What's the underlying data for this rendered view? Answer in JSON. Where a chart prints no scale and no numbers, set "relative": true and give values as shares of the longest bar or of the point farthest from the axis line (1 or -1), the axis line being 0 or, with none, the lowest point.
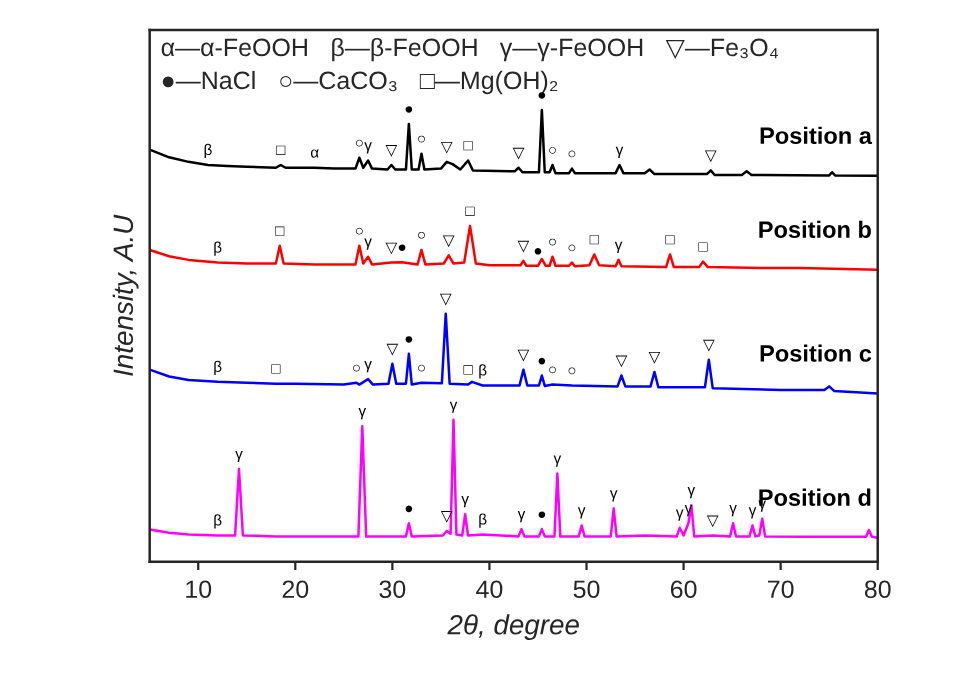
{
  "chart_data": {
    "type": "line",
    "relative": true,
    "xlabel": "2θ, degree",
    "ylabel": "Intensity, A.U",
    "xlim": [
      5,
      80
    ],
    "xticks": [
      10,
      20,
      30,
      40,
      50,
      60,
      70,
      80
    ],
    "legend": false,
    "grid": false,
    "series": [
      {
        "name": "Position a",
        "color": "#000000",
        "x": [
          5,
          7,
          9,
          11,
          13,
          15,
          18,
          18.5,
          19,
          22,
          24,
          26.2,
          26.6,
          27,
          27.5,
          27.9,
          29.5,
          29.9,
          30.3,
          31.4,
          31.7,
          32,
          32.7,
          33,
          33.3,
          35,
          35.6,
          36.2,
          37,
          37.8,
          38.3,
          42.6,
          43,
          43.4,
          45.1,
          45.4,
          45.7,
          46.2,
          46.5,
          46.8,
          48.2,
          48.5,
          48.8,
          53,
          53.4,
          53.8,
          56,
          56.5,
          57,
          62.4,
          62.8,
          63.2,
          66,
          66.5,
          67,
          75,
          75.3,
          75.6,
          80
        ],
        "values": [
          0.912,
          0.895,
          0.885,
          0.878,
          0.876,
          0.874,
          0.872,
          0.878,
          0.872,
          0.872,
          0.87,
          0.87,
          0.894,
          0.872,
          0.888,
          0.87,
          0.868,
          0.878,
          0.868,
          0.868,
          0.969,
          0.868,
          0.868,
          0.903,
          0.868,
          0.87,
          0.885,
          0.88,
          0.868,
          0.888,
          0.866,
          0.864,
          0.872,
          0.862,
          0.862,
          1.0,
          0.862,
          0.862,
          0.878,
          0.86,
          0.86,
          0.87,
          0.86,
          0.86,
          0.878,
          0.86,
          0.86,
          0.868,
          0.858,
          0.858,
          0.866,
          0.856,
          0.856,
          0.864,
          0.856,
          0.855,
          0.862,
          0.855,
          0.854
        ]
      },
      {
        "name": "Position b",
        "color": "#ff0000",
        "x": [
          5,
          7,
          9,
          12,
          15,
          18,
          18.4,
          18.8,
          22,
          26.2,
          26.6,
          27,
          27.5,
          27.9,
          29.9,
          31,
          32.6,
          33,
          33.4,
          35.3,
          35.8,
          36.3,
          37.4,
          38,
          38.6,
          40,
          43.2,
          43.5,
          43.8,
          45,
          45.4,
          45.8,
          46.2,
          46.5,
          46.8,
          48.2,
          48.5,
          48.8,
          50.3,
          50.8,
          51.3,
          53,
          53.3,
          53.6,
          58.2,
          58.6,
          59,
          61.6,
          62,
          62.5,
          68,
          72,
          80
        ],
        "values": [
          0.69,
          0.676,
          0.668,
          0.662,
          0.66,
          0.66,
          0.699,
          0.66,
          0.658,
          0.658,
          0.699,
          0.66,
          0.675,
          0.658,
          0.662,
          0.663,
          0.658,
          0.69,
          0.658,
          0.66,
          0.678,
          0.66,
          0.662,
          0.743,
          0.66,
          0.656,
          0.656,
          0.666,
          0.655,
          0.655,
          0.67,
          0.655,
          0.655,
          0.675,
          0.655,
          0.655,
          0.662,
          0.654,
          0.656,
          0.68,
          0.656,
          0.654,
          0.668,
          0.654,
          0.652,
          0.68,
          0.652,
          0.652,
          0.664,
          0.652,
          0.65,
          0.65,
          0.646
        ]
      },
      {
        "name": "Position c",
        "color": "#0000ff",
        "x": [
          5,
          7,
          9,
          12,
          15,
          18,
          20,
          25,
          26.3,
          26.6,
          27.5,
          28,
          29.6,
          30,
          30.4,
          31.4,
          31.7,
          32,
          33,
          35.1,
          35.5,
          35.9,
          37.8,
          38.2,
          39.3,
          43.1,
          43.5,
          43.9,
          45.1,
          45.4,
          45.7,
          46.5,
          48.5,
          53.2,
          53.6,
          54,
          56.6,
          57,
          57.4,
          62.2,
          62.6,
          63,
          70,
          74.5,
          75,
          75.5,
          80
        ],
        "values": [
          0.425,
          0.41,
          0.402,
          0.398,
          0.396,
          0.394,
          0.394,
          0.392,
          0.396,
          0.392,
          0.404,
          0.392,
          0.394,
          0.438,
          0.394,
          0.394,
          0.46,
          0.392,
          0.396,
          0.395,
          0.549,
          0.394,
          0.392,
          0.398,
          0.39,
          0.39,
          0.425,
          0.39,
          0.39,
          0.412,
          0.389,
          0.392,
          0.39,
          0.388,
          0.412,
          0.388,
          0.388,
          0.42,
          0.386,
          0.386,
          0.447,
          0.384,
          0.38,
          0.38,
          0.388,
          0.378,
          0.372
        ]
      },
      {
        "name": "Position d",
        "color": "#ff00ff",
        "x": [
          5,
          7,
          9,
          12,
          13.8,
          14.2,
          14.6,
          18,
          22,
          26.5,
          26.9,
          27.3,
          31.4,
          31.7,
          32,
          35.2,
          35.6,
          36,
          36.3,
          36.6,
          37.2,
          37.5,
          37.8,
          39.3,
          43,
          43.3,
          43.6,
          45.1,
          45.4,
          45.7,
          46.7,
          47,
          47.3,
          49.2,
          49.5,
          49.8,
          52.5,
          52.8,
          53.1,
          56,
          59.3,
          59.6,
          60,
          60.5,
          60.8,
          61.1,
          63,
          64.8,
          65.1,
          65.4,
          66.8,
          67.1,
          67.4,
          67.8,
          68.1,
          68.4,
          72,
          78.8,
          79.1,
          79.4,
          80
        ],
        "values": [
          0.071,
          0.064,
          0.06,
          0.058,
          0.058,
          0.205,
          0.058,
          0.056,
          0.056,
          0.056,
          0.3,
          0.056,
          0.056,
          0.085,
          0.056,
          0.058,
          0.068,
          0.062,
          0.314,
          0.06,
          0.058,
          0.105,
          0.058,
          0.06,
          0.056,
          0.072,
          0.056,
          0.056,
          0.072,
          0.056,
          0.056,
          0.195,
          0.056,
          0.056,
          0.08,
          0.056,
          0.056,
          0.118,
          0.056,
          0.058,
          0.056,
          0.075,
          0.058,
          0.085,
          0.125,
          0.056,
          0.058,
          0.056,
          0.085,
          0.056,
          0.056,
          0.08,
          0.056,
          0.058,
          0.095,
          0.056,
          0.055,
          0.055,
          0.07,
          0.055,
          0.053
        ]
      }
    ],
    "annotations": [
      "α—α-FeOOH",
      "β—β-FeOOH",
      "γ—γ-FeOOH",
      "▽—Fe₃O₄",
      "●—NaCl",
      "○—CaCO₃",
      "□—Mg(OH)₂",
      {
        "text": "β",
        "x": 11,
        "y": 0.878
      },
      {
        "text": "□",
        "x": 18.5,
        "y": 0.878
      },
      {
        "text": "α",
        "x": 22,
        "y": 0.872
      },
      {
        "text": "○",
        "x": 26.6,
        "y": 0.894
      },
      {
        "text": "γ",
        "x": 27.5,
        "y": 0.888
      },
      {
        "text": "▽",
        "x": 29.9,
        "y": 0.878
      },
      {
        "text": "●",
        "x": 31.7,
        "y": 0.969
      },
      {
        "text": "○",
        "x": 33,
        "y": 0.903
      },
      {
        "text": "▽",
        "x": 35.6,
        "y": 0.885
      },
      {
        "text": "□",
        "x": 37.8,
        "y": 0.888
      },
      {
        "text": "▽",
        "x": 43,
        "y": 0.872
      },
      {
        "text": "●",
        "x": 45.4,
        "y": 1.0
      },
      {
        "text": "○",
        "x": 46.5,
        "y": 0.878
      },
      {
        "text": "○",
        "x": 48.5,
        "y": 0.87
      },
      {
        "text": "γ",
        "x": 53.4,
        "y": 0.878
      },
      {
        "text": "▽",
        "x": 62.8,
        "y": 0.866
      },
      {
        "text": "β",
        "x": 12,
        "y": 0.662
      },
      {
        "text": "□",
        "x": 18.4,
        "y": 0.699
      },
      {
        "text": "○",
        "x": 26.6,
        "y": 0.699
      },
      {
        "text": "γ",
        "x": 27.5,
        "y": 0.675
      },
      {
        "text": "▽",
        "x": 29.9,
        "y": 0.662
      },
      {
        "text": "●",
        "x": 31,
        "y": 0.663
      },
      {
        "text": "○",
        "x": 33,
        "y": 0.69
      },
      {
        "text": "▽",
        "x": 35.8,
        "y": 0.678
      },
      {
        "text": "□",
        "x": 38,
        "y": 0.743
      },
      {
        "text": "▽",
        "x": 43.5,
        "y": 0.666
      },
      {
        "text": "●",
        "x": 45,
        "y": 0.655
      },
      {
        "text": "○",
        "x": 46.5,
        "y": 0.675
      },
      {
        "text": "○",
        "x": 48.5,
        "y": 0.662
      },
      {
        "text": "□",
        "x": 50.8,
        "y": 0.68
      },
      {
        "text": "γ",
        "x": 53.3,
        "y": 0.668
      },
      {
        "text": "□",
        "x": 58.6,
        "y": 0.68
      },
      {
        "text": "□",
        "x": 62,
        "y": 0.664
      },
      {
        "text": "β",
        "x": 12,
        "y": 0.398
      },
      {
        "text": "□",
        "x": 18,
        "y": 0.394
      },
      {
        "text": "○",
        "x": 26.3,
        "y": 0.396
      },
      {
        "text": "γ",
        "x": 27.5,
        "y": 0.404
      },
      {
        "text": "▽",
        "x": 30,
        "y": 0.438
      },
      {
        "text": "●",
        "x": 31.7,
        "y": 0.46
      },
      {
        "text": "○",
        "x": 33,
        "y": 0.396
      },
      {
        "text": "▽",
        "x": 35.5,
        "y": 0.549
      },
      {
        "text": "□",
        "x": 37.8,
        "y": 0.392
      },
      {
        "text": "β",
        "x": 39.3,
        "y": 0.39
      },
      {
        "text": "▽",
        "x": 43.5,
        "y": 0.425
      },
      {
        "text": "●",
        "x": 45.4,
        "y": 0.412
      },
      {
        "text": "○",
        "x": 46.5,
        "y": 0.392
      },
      {
        "text": "○",
        "x": 48.5,
        "y": 0.39
      },
      {
        "text": "▽",
        "x": 53.6,
        "y": 0.412
      },
      {
        "text": "▽",
        "x": 57,
        "y": 0.42
      },
      {
        "text": "▽",
        "x": 62.6,
        "y": 0.447
      },
      {
        "text": "β",
        "x": 12,
        "y": 0.058
      },
      {
        "text": "γ",
        "x": 14.2,
        "y": 0.205
      },
      {
        "text": "γ",
        "x": 26.9,
        "y": 0.3
      },
      {
        "text": "●",
        "x": 31.7,
        "y": 0.085
      },
      {
        "text": "▽",
        "x": 35.6,
        "y": 0.068
      },
      {
        "text": "γ",
        "x": 36.3,
        "y": 0.314
      },
      {
        "text": "γ",
        "x": 37.5,
        "y": 0.105
      },
      {
        "text": "β",
        "x": 39.3,
        "y": 0.06
      },
      {
        "text": "γ",
        "x": 43.3,
        "y": 0.072
      },
      {
        "text": "●",
        "x": 45.4,
        "y": 0.072
      },
      {
        "text": "γ",
        "x": 47,
        "y": 0.195
      },
      {
        "text": "γ",
        "x": 49.5,
        "y": 0.08
      },
      {
        "text": "γ",
        "x": 52.8,
        "y": 0.118
      },
      {
        "text": "γ",
        "x": 59.6,
        "y": 0.075
      },
      {
        "text": "γ",
        "x": 60.5,
        "y": 0.085
      },
      {
        "text": "γ",
        "x": 60.8,
        "y": 0.125
      },
      {
        "text": "▽",
        "x": 63,
        "y": 0.058
      },
      {
        "text": "γ",
        "x": 65.1,
        "y": 0.085
      },
      {
        "text": "γ",
        "x": 67.1,
        "y": 0.08
      },
      {
        "text": "γ",
        "x": 68.1,
        "y": 0.095
      }
    ]
  }
}
